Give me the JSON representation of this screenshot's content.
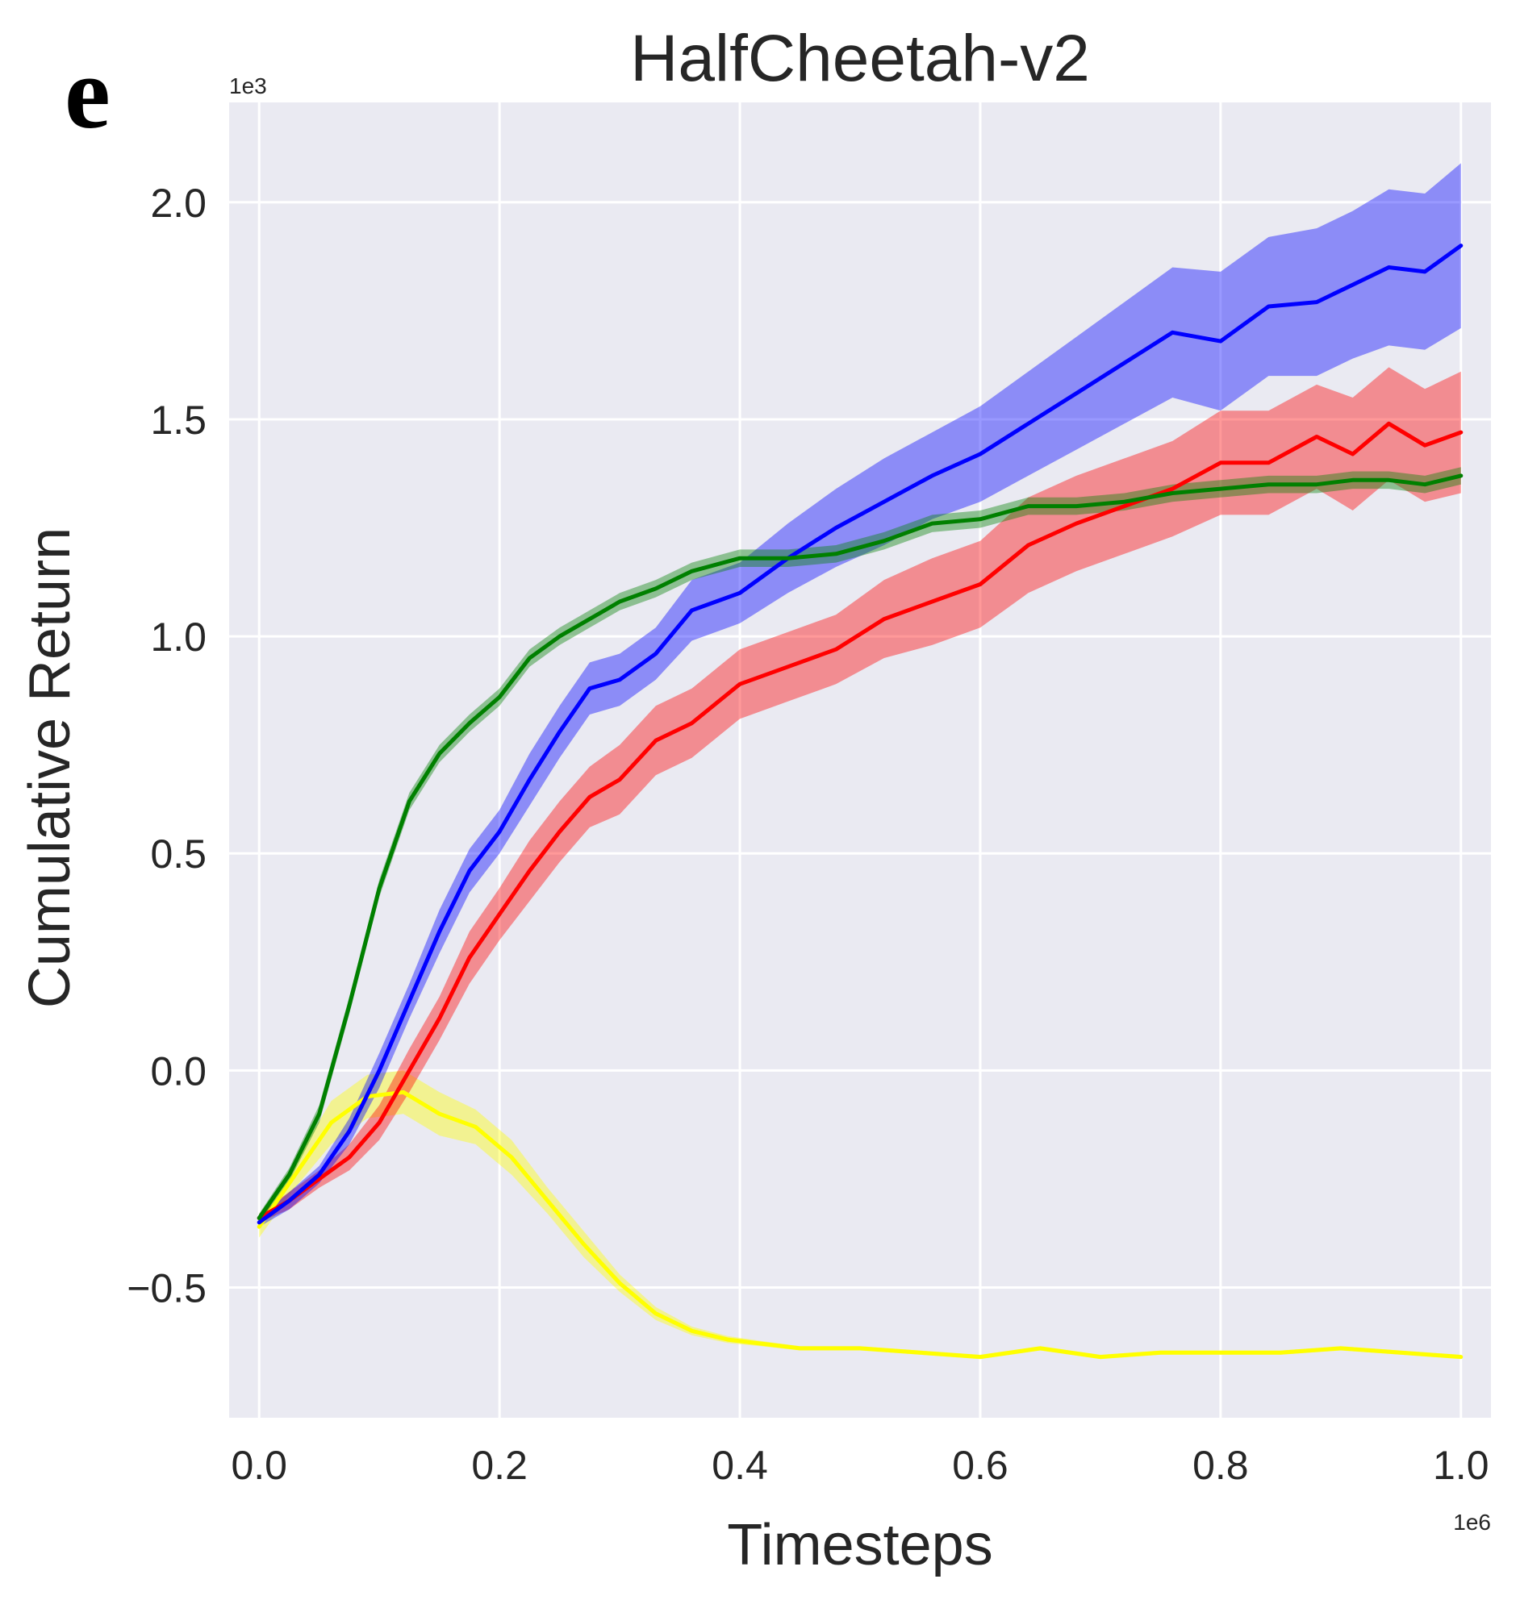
{
  "panel_letter": "e",
  "chart_data": {
    "type": "line",
    "title": "HalfCheetah-v2",
    "xlabel": "Timesteps",
    "ylabel": "Cumulative Return",
    "x_multiplier": "1e6",
    "y_multiplier": "1e3",
    "xlim": [
      -0.025,
      1.025
    ],
    "ylim": [
      -0.8,
      2.23
    ],
    "xticks": [
      0.0,
      0.2,
      0.4,
      0.6,
      0.8,
      1.0
    ],
    "xtick_labels": [
      "0.0",
      "0.2",
      "0.4",
      "0.6",
      "0.8",
      "1.0"
    ],
    "yticks": [
      -0.5,
      0.0,
      0.5,
      1.0,
      1.5,
      2.0
    ],
    "ytick_labels": [
      "−0.5",
      "0.0",
      "0.5",
      "1.0",
      "1.5",
      "2.0"
    ],
    "grid": true,
    "background": "#eaeaf2",
    "series": [
      {
        "color": "#ffff00",
        "x": [
          0.0,
          0.03,
          0.06,
          0.09,
          0.12,
          0.15,
          0.18,
          0.21,
          0.24,
          0.27,
          0.3,
          0.33,
          0.36,
          0.39,
          0.42,
          0.45,
          0.5,
          0.55,
          0.6,
          0.65,
          0.7,
          0.75,
          0.8,
          0.85,
          0.9,
          0.95,
          1.0
        ],
        "y": [
          -0.36,
          -0.24,
          -0.12,
          -0.06,
          -0.05,
          -0.1,
          -0.13,
          -0.2,
          -0.3,
          -0.4,
          -0.49,
          -0.56,
          -0.6,
          -0.62,
          -0.63,
          -0.64,
          -0.64,
          -0.65,
          -0.66,
          -0.64,
          -0.66,
          -0.65,
          -0.65,
          -0.65,
          -0.64,
          -0.65,
          -0.66
        ],
        "band": [
          0.025,
          0.03,
          0.05,
          0.05,
          0.05,
          0.05,
          0.04,
          0.04,
          0.03,
          0.03,
          0.02,
          0.015,
          0.01,
          0.008,
          0.006,
          0.005,
          0.005,
          0.005,
          0.005,
          0.005,
          0.005,
          0.005,
          0.005,
          0.005,
          0.005,
          0.005,
          0.005
        ]
      },
      {
        "color": "#ff0000",
        "x": [
          0.0,
          0.025,
          0.05,
          0.075,
          0.1,
          0.125,
          0.15,
          0.175,
          0.2,
          0.225,
          0.25,
          0.275,
          0.3,
          0.33,
          0.36,
          0.4,
          0.44,
          0.48,
          0.52,
          0.56,
          0.6,
          0.64,
          0.68,
          0.72,
          0.76,
          0.8,
          0.84,
          0.88,
          0.91,
          0.94,
          0.97,
          1.0
        ],
        "y": [
          -0.34,
          -0.3,
          -0.25,
          -0.2,
          -0.12,
          0.0,
          0.12,
          0.26,
          0.36,
          0.46,
          0.55,
          0.63,
          0.67,
          0.76,
          0.8,
          0.89,
          0.93,
          0.97,
          1.04,
          1.08,
          1.12,
          1.21,
          1.26,
          1.3,
          1.34,
          1.4,
          1.4,
          1.46,
          1.42,
          1.49,
          1.44,
          1.47
        ],
        "band": [
          0.01,
          0.02,
          0.02,
          0.03,
          0.04,
          0.05,
          0.05,
          0.06,
          0.06,
          0.07,
          0.07,
          0.07,
          0.08,
          0.08,
          0.08,
          0.08,
          0.08,
          0.08,
          0.09,
          0.1,
          0.1,
          0.11,
          0.11,
          0.11,
          0.11,
          0.12,
          0.12,
          0.12,
          0.13,
          0.13,
          0.13,
          0.14
        ]
      },
      {
        "color": "#0000ff",
        "x": [
          0.0,
          0.025,
          0.05,
          0.075,
          0.1,
          0.125,
          0.15,
          0.175,
          0.2,
          0.225,
          0.25,
          0.275,
          0.3,
          0.33,
          0.36,
          0.4,
          0.44,
          0.48,
          0.52,
          0.56,
          0.6,
          0.64,
          0.68,
          0.72,
          0.76,
          0.8,
          0.84,
          0.88,
          0.91,
          0.94,
          0.97,
          1.0
        ],
        "y": [
          -0.35,
          -0.3,
          -0.24,
          -0.14,
          0.0,
          0.16,
          0.32,
          0.46,
          0.55,
          0.67,
          0.78,
          0.88,
          0.9,
          0.96,
          1.06,
          1.1,
          1.18,
          1.25,
          1.31,
          1.37,
          1.42,
          1.49,
          1.56,
          1.63,
          1.7,
          1.68,
          1.76,
          1.77,
          1.81,
          1.85,
          1.84,
          1.9
        ],
        "band": [
          0.01,
          0.02,
          0.02,
          0.03,
          0.04,
          0.04,
          0.05,
          0.05,
          0.05,
          0.06,
          0.06,
          0.06,
          0.06,
          0.06,
          0.07,
          0.07,
          0.08,
          0.09,
          0.1,
          0.1,
          0.11,
          0.12,
          0.13,
          0.14,
          0.15,
          0.16,
          0.16,
          0.17,
          0.17,
          0.18,
          0.18,
          0.19
        ]
      },
      {
        "color": "#008000",
        "x": [
          0.0,
          0.025,
          0.05,
          0.075,
          0.1,
          0.125,
          0.15,
          0.175,
          0.2,
          0.225,
          0.25,
          0.275,
          0.3,
          0.33,
          0.36,
          0.4,
          0.44,
          0.48,
          0.52,
          0.56,
          0.6,
          0.64,
          0.68,
          0.72,
          0.76,
          0.8,
          0.84,
          0.88,
          0.91,
          0.94,
          0.97,
          1.0
        ],
        "y": [
          -0.34,
          -0.24,
          -0.1,
          0.15,
          0.42,
          0.62,
          0.73,
          0.8,
          0.86,
          0.95,
          1.0,
          1.04,
          1.08,
          1.11,
          1.15,
          1.18,
          1.18,
          1.19,
          1.22,
          1.26,
          1.27,
          1.3,
          1.3,
          1.31,
          1.33,
          1.34,
          1.35,
          1.35,
          1.36,
          1.36,
          1.35,
          1.37
        ],
        "band": [
          0.01,
          0.015,
          0.02,
          0.02,
          0.02,
          0.02,
          0.02,
          0.02,
          0.02,
          0.02,
          0.02,
          0.02,
          0.02,
          0.02,
          0.02,
          0.02,
          0.02,
          0.02,
          0.02,
          0.02,
          0.02,
          0.02,
          0.02,
          0.02,
          0.02,
          0.02,
          0.02,
          0.02,
          0.02,
          0.02,
          0.02,
          0.02
        ]
      }
    ]
  }
}
